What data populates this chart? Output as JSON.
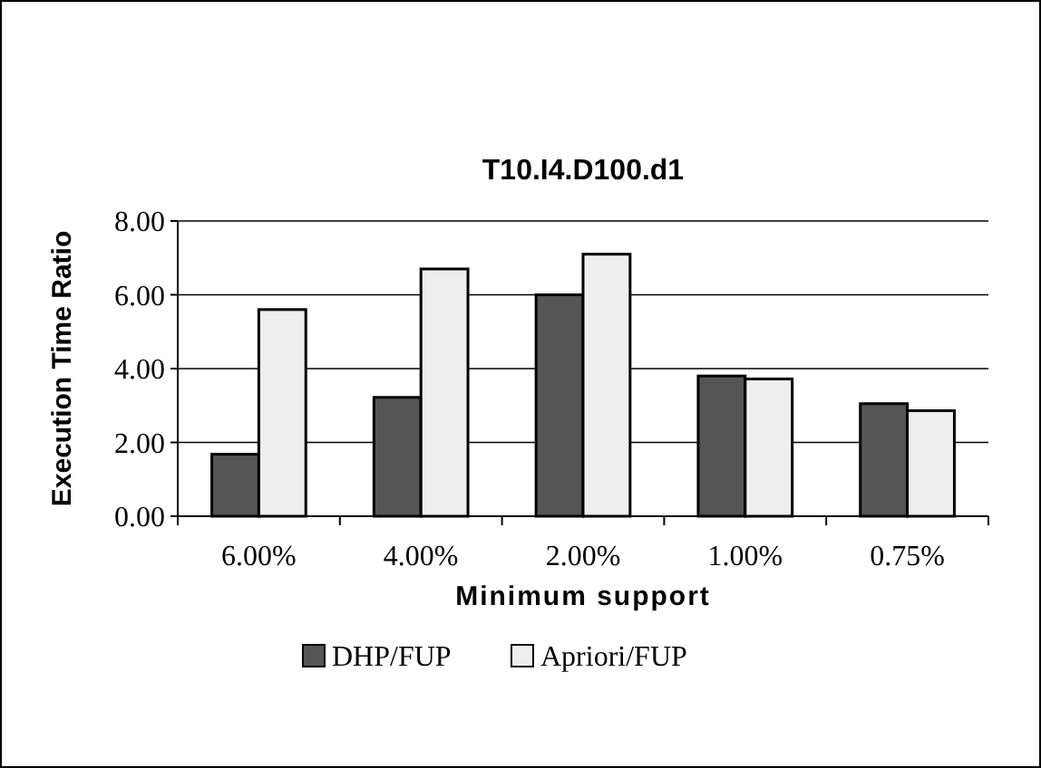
{
  "chart_data": {
    "type": "bar",
    "title": "T10.I4.D100.d1",
    "xlabel": "Minimum support",
    "ylabel": "Execution Time Ratio",
    "categories": [
      "6.00%",
      "4.00%",
      "2.00%",
      "1.00%",
      "0.75%"
    ],
    "series": [
      {
        "name": "DHP/FUP",
        "color": "#555555",
        "values": [
          1.68,
          3.22,
          6.0,
          3.8,
          3.05
        ]
      },
      {
        "name": "Apriori/FUP",
        "color": "#eeeeee",
        "values": [
          5.6,
          6.7,
          7.1,
          3.72,
          2.86
        ]
      }
    ],
    "ylim": [
      0,
      8
    ],
    "yticks": [
      {
        "value": 0,
        "label": "0.00"
      },
      {
        "value": 2,
        "label": "2.00"
      },
      {
        "value": 4,
        "label": "4.00"
      },
      {
        "value": 6,
        "label": "6.00"
      },
      {
        "value": 8,
        "label": "8.00"
      }
    ],
    "grid": "y",
    "legend": "bottom"
  }
}
